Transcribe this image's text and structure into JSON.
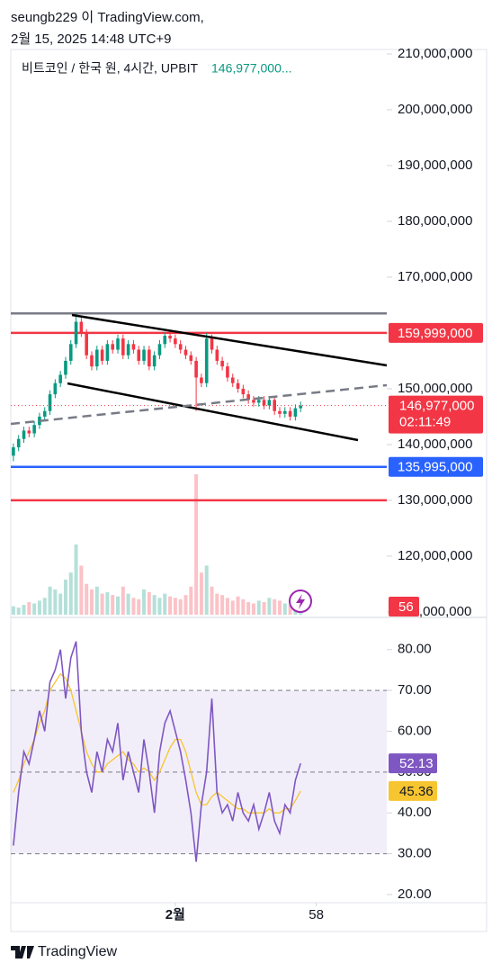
{
  "header": {
    "author_line": "seungb229 이 TradingView.com,",
    "date_line": "2월 15, 2025 14:48 UTC+9",
    "brand": "TradingView"
  },
  "chart_data": [
    {
      "type": "candlestick",
      "symbol": "비트코인 / 한국 원, 4시간, UPBIT",
      "last_price_text": "146,977,000...",
      "up_color": "#089981",
      "down_color": "#f23645",
      "open": [
        138000000,
        139500000,
        141000000,
        142500000,
        142000000,
        143500000,
        145000000,
        146000000,
        149000000,
        151000000,
        152500000,
        155000000,
        158000000,
        162000000,
        160000000,
        156000000,
        154000000,
        157000000,
        155000000,
        158000000,
        157000000,
        159000000,
        156000000,
        158000000,
        157000000,
        155000000,
        157000000,
        154000000,
        156000000,
        158000000,
        159500000,
        159000000,
        158000000,
        157000000,
        156000000,
        155000000,
        152000000,
        151000000,
        159000000,
        157000000,
        155000000,
        154000000,
        152000000,
        151000000,
        150000000,
        149000000,
        148000000,
        147500000,
        148000000,
        147000000,
        148000000,
        146000000,
        145500000,
        146000000,
        145000000,
        146500000
      ],
      "high": [
        140200000,
        141700000,
        143200000,
        143200000,
        144200000,
        145700000,
        146700000,
        149700000,
        151700000,
        153200000,
        155700000,
        158700000,
        163500000,
        162700000,
        160700000,
        156700000,
        157700000,
        157700000,
        158700000,
        158700000,
        159700000,
        159700000,
        158700000,
        158700000,
        157700000,
        157700000,
        157700000,
        156700000,
        158700000,
        160200000,
        160200000,
        159700000,
        158700000,
        157700000,
        156700000,
        155700000,
        152700000,
        160000000,
        159700000,
        157700000,
        155700000,
        154700000,
        152700000,
        151700000,
        150700000,
        149700000,
        148700000,
        148700000,
        148700000,
        148700000,
        148700000,
        146700000,
        146700000,
        146700000,
        147200000,
        147700000
      ],
      "low": [
        137000000,
        138800000,
        140300000,
        141300000,
        141300000,
        142800000,
        144300000,
        145300000,
        148300000,
        150300000,
        151800000,
        154300000,
        157300000,
        159300000,
        155300000,
        153300000,
        153300000,
        154300000,
        154300000,
        156300000,
        156300000,
        155300000,
        155300000,
        156300000,
        154300000,
        154300000,
        153300000,
        153300000,
        155300000,
        157300000,
        158300000,
        157300000,
        156300000,
        155300000,
        154300000,
        146000000,
        150300000,
        150300000,
        156300000,
        154300000,
        153300000,
        151300000,
        150300000,
        149300000,
        148300000,
        147300000,
        146800000,
        146800000,
        146300000,
        146300000,
        145300000,
        144800000,
        144800000,
        144300000,
        144300000,
        145800000
      ],
      "close": [
        139500000,
        141000000,
        142500000,
        142000000,
        143500000,
        145000000,
        146000000,
        149000000,
        151000000,
        152500000,
        155000000,
        158000000,
        162000000,
        160000000,
        156000000,
        154000000,
        157000000,
        155000000,
        158000000,
        157000000,
        159000000,
        156000000,
        158000000,
        157000000,
        155000000,
        157000000,
        154000000,
        156000000,
        158000000,
        159500000,
        159000000,
        158000000,
        157000000,
        156000000,
        155000000,
        152000000,
        151000000,
        159000000,
        157000000,
        155000000,
        154000000,
        152000000,
        151000000,
        150000000,
        149000000,
        148000000,
        147500000,
        148000000,
        147000000,
        148000000,
        146000000,
        145500000,
        146000000,
        145000000,
        146500000,
        146977000
      ],
      "last_price_label": "146,977,000",
      "countdown": "02:11:49",
      "volume": [
        60,
        50,
        70,
        90,
        80,
        100,
        120,
        200,
        180,
        150,
        250,
        300,
        500,
        350,
        220,
        180,
        200,
        150,
        160,
        140,
        130,
        200,
        150,
        120,
        110,
        180,
        160,
        140,
        120,
        150,
        130,
        120,
        110,
        140,
        200,
        1000,
        300,
        350,
        200,
        150,
        140,
        120,
        100,
        130,
        110,
        90,
        80,
        100,
        90,
        120,
        110,
        100,
        80,
        70,
        90,
        56
      ],
      "price_lines": [
        {
          "value": 163500000,
          "color": "#787b86"
        },
        {
          "value": 159999000,
          "label": "159,999,000",
          "color": "#f23645"
        },
        {
          "value": 135995000,
          "label": "135,995,000",
          "color": "#2962ff"
        },
        {
          "value": 130000000,
          "color": "#f23645"
        }
      ],
      "xlim": [
        -0.5,
        71.5
      ],
      "ylim": [
        109500000,
        210800000
      ],
      "yticks": [
        {
          "value": 210000000,
          "label": "210,000,000"
        },
        {
          "value": 200000000,
          "label": "200,000,000"
        },
        {
          "value": 190000000,
          "label": "190,000,000"
        },
        {
          "value": 180000000,
          "label": "180,000,000"
        },
        {
          "value": 170000000,
          "label": "170,000,000"
        },
        {
          "value": 160000000,
          "label": "160,000,000"
        },
        {
          "value": 150000000,
          "label": "150,000,000"
        },
        {
          "value": 140000000,
          "label": "140,000,000"
        },
        {
          "value": 130000000,
          "label": "130,000,000"
        },
        {
          "value": 120000000,
          "label": "120,000,000"
        },
        {
          "value": 110000000,
          "label": "110,000,000"
        }
      ]
    },
    {
      "type": "line",
      "series": [
        {
          "name": "RSI",
          "color": "#7e57c2",
          "values": [
            32,
            45,
            55,
            52,
            58,
            65,
            60,
            72,
            75,
            80,
            68,
            78,
            82,
            60,
            50,
            45,
            55,
            50,
            58,
            55,
            62,
            48,
            55,
            50,
            45,
            58,
            50,
            40,
            55,
            62,
            65,
            60,
            55,
            48,
            40,
            28,
            42,
            50,
            68,
            45,
            40,
            42,
            38,
            45,
            40,
            38,
            42,
            36,
            40,
            45,
            38,
            35,
            42,
            40,
            48,
            52.13
          ]
        },
        {
          "name": "RSI MA",
          "color": "#f7c530",
          "values": [
            45,
            48,
            52,
            55,
            58,
            62,
            65,
            70,
            72,
            74,
            73,
            70,
            65,
            60,
            55,
            52,
            50,
            50,
            52,
            53,
            54,
            55,
            53,
            52,
            50,
            51,
            50,
            48,
            50,
            53,
            56,
            58,
            58,
            55,
            50,
            45,
            42,
            42,
            44,
            45,
            44,
            43,
            42,
            41,
            41,
            40,
            40,
            40,
            40,
            41,
            40,
            40,
            41,
            41,
            43,
            45.36
          ]
        }
      ],
      "band": [
        30,
        70
      ],
      "band_color": "#7e57c2",
      "midline": 50,
      "xlim": [
        -0.5,
        71.5
      ],
      "xticks": [
        {
          "value": 31,
          "label": "2월"
        },
        58
      ],
      "ylim": [
        18,
        87
      ],
      "yticks": [
        {
          "value": 20,
          "label": "20.00"
        },
        {
          "value": 30,
          "label": "30.00"
        },
        {
          "value": 40,
          "label": "40.00"
        },
        {
          "value": 50,
          "label": "50.00"
        },
        {
          "value": 60,
          "label": "60.00"
        },
        {
          "value": 70,
          "label": "70.00"
        },
        {
          "value": 80,
          "label": "80.00"
        }
      ]
    }
  ]
}
